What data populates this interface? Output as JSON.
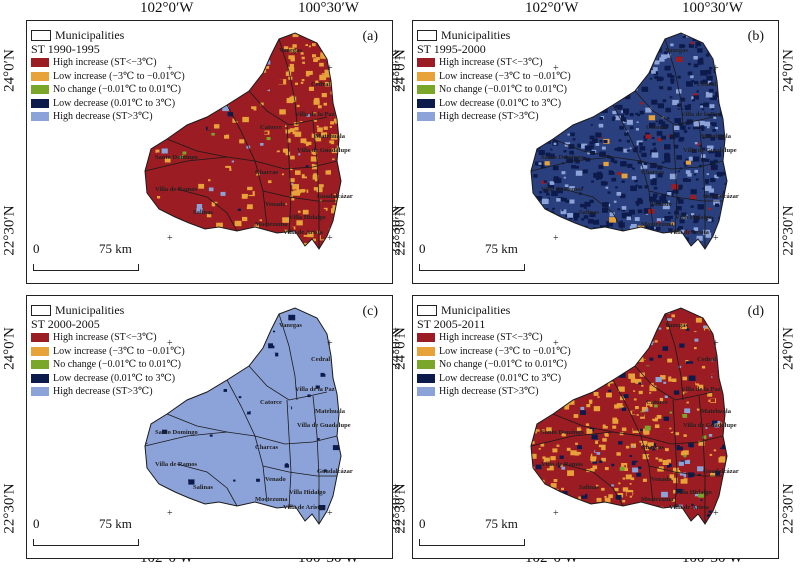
{
  "coords": {
    "lon_left": "102°0′W",
    "lon_right": "100°30′W",
    "lat_top": "24°0′N",
    "lat_bottom": "22°30′N"
  },
  "legend_common": {
    "municipalities": "Municipalities",
    "classes": [
      {
        "label": "High increase (ST<−3℃)",
        "color": "#9b1c22"
      },
      {
        "label": "Low increase (−3℃ to −0.01℃)",
        "color": "#e8a23a"
      },
      {
        "label": "No change (−0.01℃ to 0.01℃)",
        "color": "#7aa62a"
      },
      {
        "label": "Low decrease (0.01℃ to 3℃)",
        "color": "#0d1b4c"
      },
      {
        "label": "High decrease (ST>3℃)",
        "color": "#8ca3d9"
      }
    ]
  },
  "scale": {
    "zero": "0",
    "distance": "75 km"
  },
  "panels": [
    {
      "letter": "(a)",
      "period": "ST 1990-1995"
    },
    {
      "letter": "(b)",
      "period": "ST 1995-2000"
    },
    {
      "letter": "(c)",
      "period": "ST 2000-2005"
    },
    {
      "letter": "(d)",
      "period": "ST 2005-2011"
    }
  ],
  "municipalities": [
    "Santo Domingo",
    "Villa de Ramos",
    "Catorce",
    "Villa de la Paz",
    "Charcas",
    "Venado",
    "Moctezuma",
    "Villa de Arista",
    "Villa Hidalgo",
    "Guadalcázar",
    "Salinas",
    "Matehuala",
    "Vanegas",
    "Cedral",
    "Villa de Guadalupe"
  ]
}
